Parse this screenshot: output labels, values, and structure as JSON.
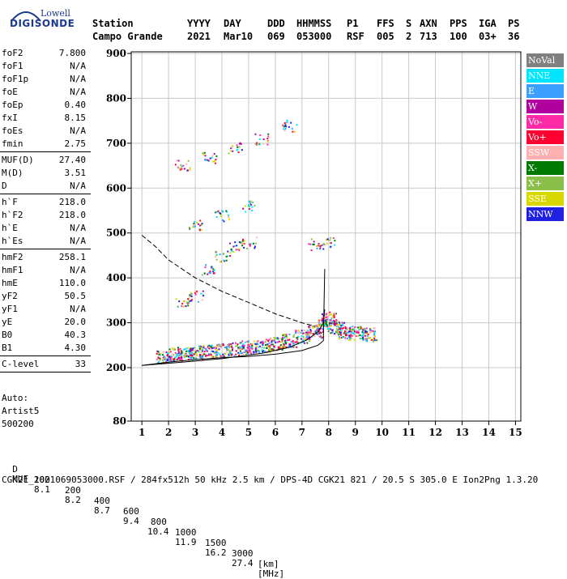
{
  "logo": {
    "top": "Lowell",
    "main": "DIGISONDE"
  },
  "header": {
    "row1": [
      "Station",
      "YYYY",
      "DAY",
      "DDD",
      "HHMMSS",
      "P1",
      "FFS",
      "S",
      "AXN",
      "PPS",
      "IGA",
      "PS"
    ],
    "row2": [
      "Campo Grande",
      "2021",
      "Mar10",
      "069",
      "053000",
      "RSF",
      "005",
      "2",
      "713",
      "100",
      "03+",
      "36"
    ]
  },
  "params_group1": [
    {
      "label": "foF2",
      "value": "7.800"
    },
    {
      "label": "foF1",
      "value": "N/A"
    },
    {
      "label": "foF1p",
      "value": "N/A"
    },
    {
      "label": "foE",
      "value": "N/A"
    },
    {
      "label": "foEp",
      "value": "0.40"
    },
    {
      "label": "fxI",
      "value": "8.15"
    },
    {
      "label": "foEs",
      "value": "N/A"
    },
    {
      "label": "fmin",
      "value": "2.75"
    }
  ],
  "params_group2": [
    {
      "label": "MUF(D)",
      "value": "27.40"
    },
    {
      "label": "M(D)",
      "value": "3.51"
    },
    {
      "label": "D",
      "value": "N/A"
    }
  ],
  "params_group3": [
    {
      "label": "h`F",
      "value": "218.0"
    },
    {
      "label": "h`F2",
      "value": "218.0"
    },
    {
      "label": "h`E",
      "value": "N/A"
    },
    {
      "label": "h`Es",
      "value": "N/A"
    }
  ],
  "params_group4": [
    {
      "label": "hmF2",
      "value": "258.1"
    },
    {
      "label": "hmF1",
      "value": "N/A"
    },
    {
      "label": "hmE",
      "value": "110.0"
    },
    {
      "label": "yF2",
      "value": "50.5"
    },
    {
      "label": "yF1",
      "value": "N/A"
    },
    {
      "label": "yE",
      "value": "20.0"
    },
    {
      "label": "B0",
      "value": "40.3"
    },
    {
      "label": "B1",
      "value": "4.30"
    }
  ],
  "params_group5": [
    {
      "label": "C-level",
      "value": "33"
    }
  ],
  "auto": {
    "line1": "Auto:",
    "line2": "Artist5",
    "line3": "500200"
  },
  "legend": [
    {
      "label": "NoVal",
      "color": "#808080"
    },
    {
      "label": "NNE",
      "color": "#00e5ff"
    },
    {
      "label": "E",
      "color": "#3aa0ff"
    },
    {
      "label": "W",
      "color": "#b0009e"
    },
    {
      "label": "Vo-",
      "color": "#ff2aa8"
    },
    {
      "label": "Vo+",
      "color": "#ff0030"
    },
    {
      "label": "SSW",
      "color": "#ffb0b0"
    },
    {
      "label": "X-",
      "color": "#007a00"
    },
    {
      "label": "X+",
      "color": "#8ac04a"
    },
    {
      "label": "SSE",
      "color": "#d8d800"
    },
    {
      "label": "NNW",
      "color": "#2020e0"
    }
  ],
  "bottom": {
    "d_label": "D",
    "d_values": [
      "100",
      "200",
      "400",
      "600",
      "800",
      "1000",
      "1500",
      "3000",
      "[km]"
    ],
    "muf_label": "MUF",
    "muf_values": [
      "8.1",
      "8.2",
      "8.7",
      "9.4",
      "10.4",
      "11.9",
      "16.2",
      "27.4",
      "[MHz]"
    ],
    "footer": "CGK21_2021069053000.RSF / 284fx512h 50 kHz 2.5 km / DPS-4D CGK21 821 / 20.5 S 305.0 E Ion2Png 1.3.20"
  },
  "chart_data": {
    "type": "scatter",
    "x_ticks": [
      1,
      2,
      3,
      4,
      5,
      6,
      7,
      8,
      9,
      10,
      11,
      12,
      13,
      14,
      15
    ],
    "y_ticks": [
      80,
      200,
      300,
      400,
      500,
      600,
      700,
      800,
      900
    ],
    "xlim": [
      0.6,
      15.2
    ],
    "ylim": [
      80,
      900
    ],
    "grid": true,
    "legend_position": "right",
    "series": [
      {
        "color_key": "mixed",
        "points": [
          [
            1.8,
            225
          ],
          [
            2.2,
            230
          ],
          [
            2.6,
            232
          ],
          [
            3.0,
            235
          ],
          [
            3.5,
            238
          ],
          [
            4.0,
            240
          ],
          [
            4.5,
            243
          ],
          [
            5.0,
            246
          ],
          [
            5.5,
            250
          ],
          [
            6.0,
            255
          ],
          [
            6.5,
            262
          ],
          [
            7.0,
            270
          ],
          [
            7.5,
            280
          ],
          [
            7.8,
            295
          ],
          [
            8.0,
            310
          ],
          [
            8.3,
            290
          ],
          [
            8.6,
            280
          ],
          [
            9.0,
            278
          ],
          [
            9.5,
            275
          ],
          [
            2.5,
            350
          ],
          [
            3.0,
            360
          ],
          [
            3.5,
            420
          ],
          [
            4.0,
            450
          ],
          [
            4.5,
            470
          ],
          [
            5.0,
            480
          ],
          [
            2.5,
            650
          ],
          [
            3.5,
            670
          ],
          [
            4.5,
            690
          ],
          [
            5.5,
            710
          ],
          [
            6.5,
            740
          ],
          [
            3.0,
            520
          ],
          [
            4.0,
            540
          ],
          [
            5.0,
            560
          ],
          [
            7.5,
            475
          ],
          [
            8.0,
            478
          ]
        ]
      }
    ],
    "curves": [
      {
        "name_key": "profile",
        "points": [
          [
            1.0,
            205
          ],
          [
            2.0,
            212
          ],
          [
            3.0,
            218
          ],
          [
            4.0,
            222
          ],
          [
            5.0,
            225
          ],
          [
            6.0,
            230
          ],
          [
            7.0,
            238
          ],
          [
            7.6,
            250
          ],
          [
            7.8,
            260
          ],
          [
            7.85,
            420
          ]
        ]
      },
      {
        "name_key": "virtual",
        "points": [
          [
            1.0,
            205
          ],
          [
            2.5,
            212
          ],
          [
            4.0,
            220
          ],
          [
            5.5,
            232
          ],
          [
            6.5,
            245
          ],
          [
            7.2,
            262
          ],
          [
            7.6,
            280
          ],
          [
            7.8,
            300
          ],
          [
            7.85,
            330
          ]
        ]
      },
      {
        "name_key": "dashed",
        "points": [
          [
            1.0,
            495
          ],
          [
            1.5,
            470
          ],
          [
            2.0,
            440
          ],
          [
            3.0,
            400
          ],
          [
            4.0,
            370
          ],
          [
            5.0,
            345
          ],
          [
            6.0,
            320
          ],
          [
            7.0,
            300
          ],
          [
            7.5,
            292
          ]
        ]
      }
    ]
  }
}
